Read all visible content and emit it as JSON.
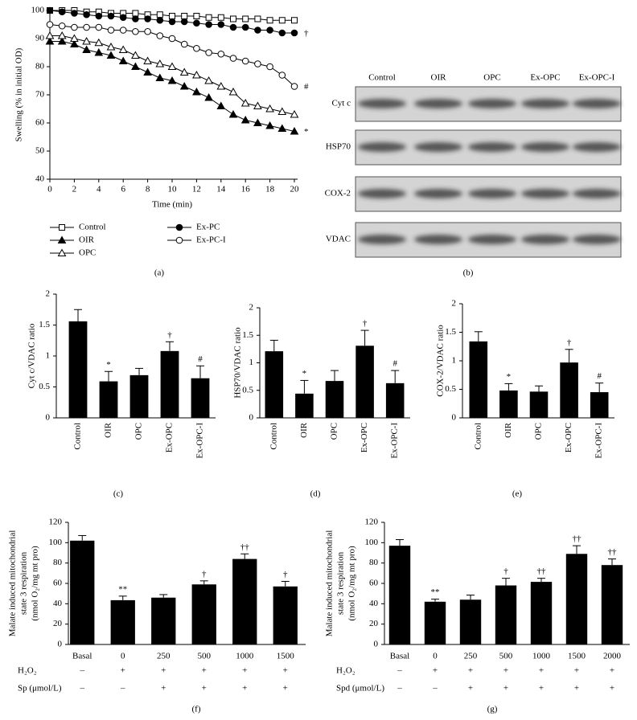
{
  "chart_data": [
    {
      "type": "line",
      "caption": "(a)",
      "xlabel": "Time (min)",
      "ylabel": "Swelling (% in initial OD)",
      "x": [
        0,
        1,
        2,
        3,
        4,
        5,
        6,
        7,
        8,
        9,
        10,
        11,
        12,
        13,
        14,
        15,
        16,
        17,
        18,
        19,
        20
      ],
      "xlim": [
        0,
        20
      ],
      "xticks": [
        0,
        2,
        4,
        6,
        8,
        10,
        12,
        14,
        16,
        18,
        20
      ],
      "ylim": [
        40,
        100
      ],
      "yticks": [
        40,
        50,
        60,
        70,
        80,
        90,
        100
      ],
      "series": [
        {
          "name": "Control",
          "color": "#000",
          "marker": "square",
          "filled": false,
          "values": [
            100,
            100,
            100,
            99.5,
            99.5,
            99,
            99,
            99,
            98.5,
            98.5,
            98,
            98,
            98,
            97.5,
            97.5,
            97,
            97,
            97,
            96.5,
            96.5,
            96.5
          ]
        },
        {
          "name": "OIR",
          "color": "#000",
          "marker": "triangle",
          "filled": true,
          "end_label": "*",
          "values": [
            89,
            89,
            88,
            86,
            85,
            84,
            82,
            80,
            78,
            76,
            75,
            73,
            71,
            69,
            66,
            63,
            61,
            60,
            59,
            58,
            57
          ]
        },
        {
          "name": "OPC",
          "color": "#000",
          "marker": "triangle",
          "filled": false,
          "values": [
            91,
            91,
            90,
            89,
            88.5,
            87,
            86,
            84,
            82,
            81,
            80,
            78,
            77,
            75,
            73,
            71,
            67,
            66,
            65,
            64,
            63
          ]
        },
        {
          "name": "Ex-PC",
          "color": "#000",
          "marker": "circle",
          "filled": true,
          "end_label": "†",
          "values": [
            100,
            99.5,
            99,
            98.5,
            98,
            98,
            97.5,
            97,
            97,
            96.5,
            96,
            96,
            95.5,
            95,
            95,
            94,
            94,
            93,
            93,
            92,
            92
          ]
        },
        {
          "name": "Ex-PC-I",
          "color": "#000",
          "marker": "circle",
          "filled": false,
          "end_label": "#",
          "values": [
            95,
            94.5,
            94,
            94,
            94,
            93,
            93,
            92.5,
            92.5,
            91,
            90,
            88,
            86.5,
            85,
            84.5,
            83,
            82,
            81,
            80,
            77,
            73
          ]
        }
      ]
    },
    {
      "type": "bar",
      "caption": "(c)",
      "ylabel": [
        "Cyt c/VDAC ratio"
      ],
      "rotate_labels": true,
      "color": "#000",
      "categories": [
        "Control",
        "OIR",
        "OPC",
        "Ex-OPC",
        "Ex-OPC-I"
      ],
      "values": [
        1.56,
        0.59,
        0.69,
        1.08,
        0.64
      ],
      "errors": [
        0.19,
        0.16,
        0.11,
        0.15,
        0.2
      ],
      "markers": [
        null,
        "*",
        null,
        "†",
        "#"
      ],
      "ylim": [
        0,
        2
      ],
      "yticks": [
        0,
        0.5,
        1,
        1.5,
        2
      ]
    },
    {
      "type": "bar",
      "caption": "(d)",
      "ylabel": [
        "HSP70/VDAC ratio"
      ],
      "rotate_labels": true,
      "color": "#000",
      "categories": [
        "Control",
        "OIR",
        "OPC",
        "Ex-OPC",
        "Ex-OPC-I"
      ],
      "values": [
        1.21,
        0.44,
        0.67,
        1.31,
        0.63
      ],
      "errors": [
        0.2,
        0.24,
        0.19,
        0.28,
        0.23
      ],
      "markers": [
        null,
        "*",
        null,
        "†",
        "#"
      ],
      "ylim": [
        0,
        2
      ],
      "yticks": [
        0,
        0.5,
        1,
        1.5,
        2
      ]
    },
    {
      "type": "bar",
      "caption": "(e)",
      "ylabel": [
        "COX-2/VDAC ratio"
      ],
      "rotate_labels": true,
      "color": "#000",
      "categories": [
        "Control",
        "OIR",
        "OPC",
        "Ex-OPC",
        "Ex-OPC-I"
      ],
      "values": [
        1.34,
        0.48,
        0.46,
        0.97,
        0.45
      ],
      "errors": [
        0.17,
        0.12,
        0.1,
        0.23,
        0.16
      ],
      "markers": [
        null,
        "*",
        null,
        "†",
        "#"
      ],
      "ylim": [
        0,
        2
      ],
      "yticks": [
        0,
        0.5,
        1,
        1.5,
        2
      ]
    },
    {
      "type": "bar",
      "caption": "(f)",
      "ylabel": [
        "Malate induced mitochondrial",
        "state 3 respiration",
        "(nmol O₂/mg mt pro)"
      ],
      "rotate_labels": false,
      "color": "#000",
      "categories": [
        "Basal",
        "0",
        "250",
        "500",
        "1000",
        "1500"
      ],
      "values": [
        102,
        43.5,
        46,
        59,
        84,
        57
      ],
      "errors": [
        5,
        4,
        3,
        3.5,
        5,
        5
      ],
      "markers": [
        null,
        "**",
        null,
        "†",
        "††",
        "†"
      ],
      "ylim": [
        0,
        120
      ],
      "yticks": [
        0,
        20,
        40,
        60,
        80,
        100,
        120
      ],
      "rows": [
        {
          "label": "H₂O₂",
          "values": [
            "–",
            "+",
            "+",
            "+",
            "+",
            "+"
          ]
        },
        {
          "label": "Sp (μmol/L)",
          "values": [
            "–",
            "–",
            "+",
            "+",
            "+",
            "+"
          ]
        }
      ]
    },
    {
      "type": "bar",
      "caption": "(g)",
      "ylabel": [
        "Malate induced mitochondrial",
        "state 3 respiration",
        "(nmol O₂/mg mt pro)"
      ],
      "rotate_labels": false,
      "color": "#000",
      "categories": [
        "Basal",
        "0",
        "250",
        "500",
        "1000",
        "1500",
        "2000"
      ],
      "values": [
        97,
        42,
        44,
        58,
        61.5,
        89,
        78
      ],
      "errors": [
        6,
        2.5,
        4.5,
        7,
        3.5,
        8,
        6
      ],
      "markers": [
        null,
        "**",
        null,
        "†",
        "††",
        "††",
        "††"
      ],
      "ylim": [
        0,
        120
      ],
      "yticks": [
        0,
        20,
        40,
        60,
        80,
        100,
        120
      ],
      "rows": [
        {
          "label": "H₂O₂",
          "values": [
            "–",
            "+",
            "+",
            "+",
            "+",
            "+",
            "+"
          ]
        },
        {
          "label": "Spd (μmol/L)",
          "values": [
            "–",
            "–",
            "+",
            "+",
            "+",
            "+",
            "+"
          ]
        }
      ]
    }
  ],
  "blot": {
    "caption": "(b)",
    "lanes": [
      "Control",
      "OIR",
      "OPC",
      "Ex-OPC",
      "Ex-OPC-I"
    ],
    "rows": [
      "Cyt c",
      "HSP70",
      "COX-2",
      "VDAC"
    ]
  }
}
